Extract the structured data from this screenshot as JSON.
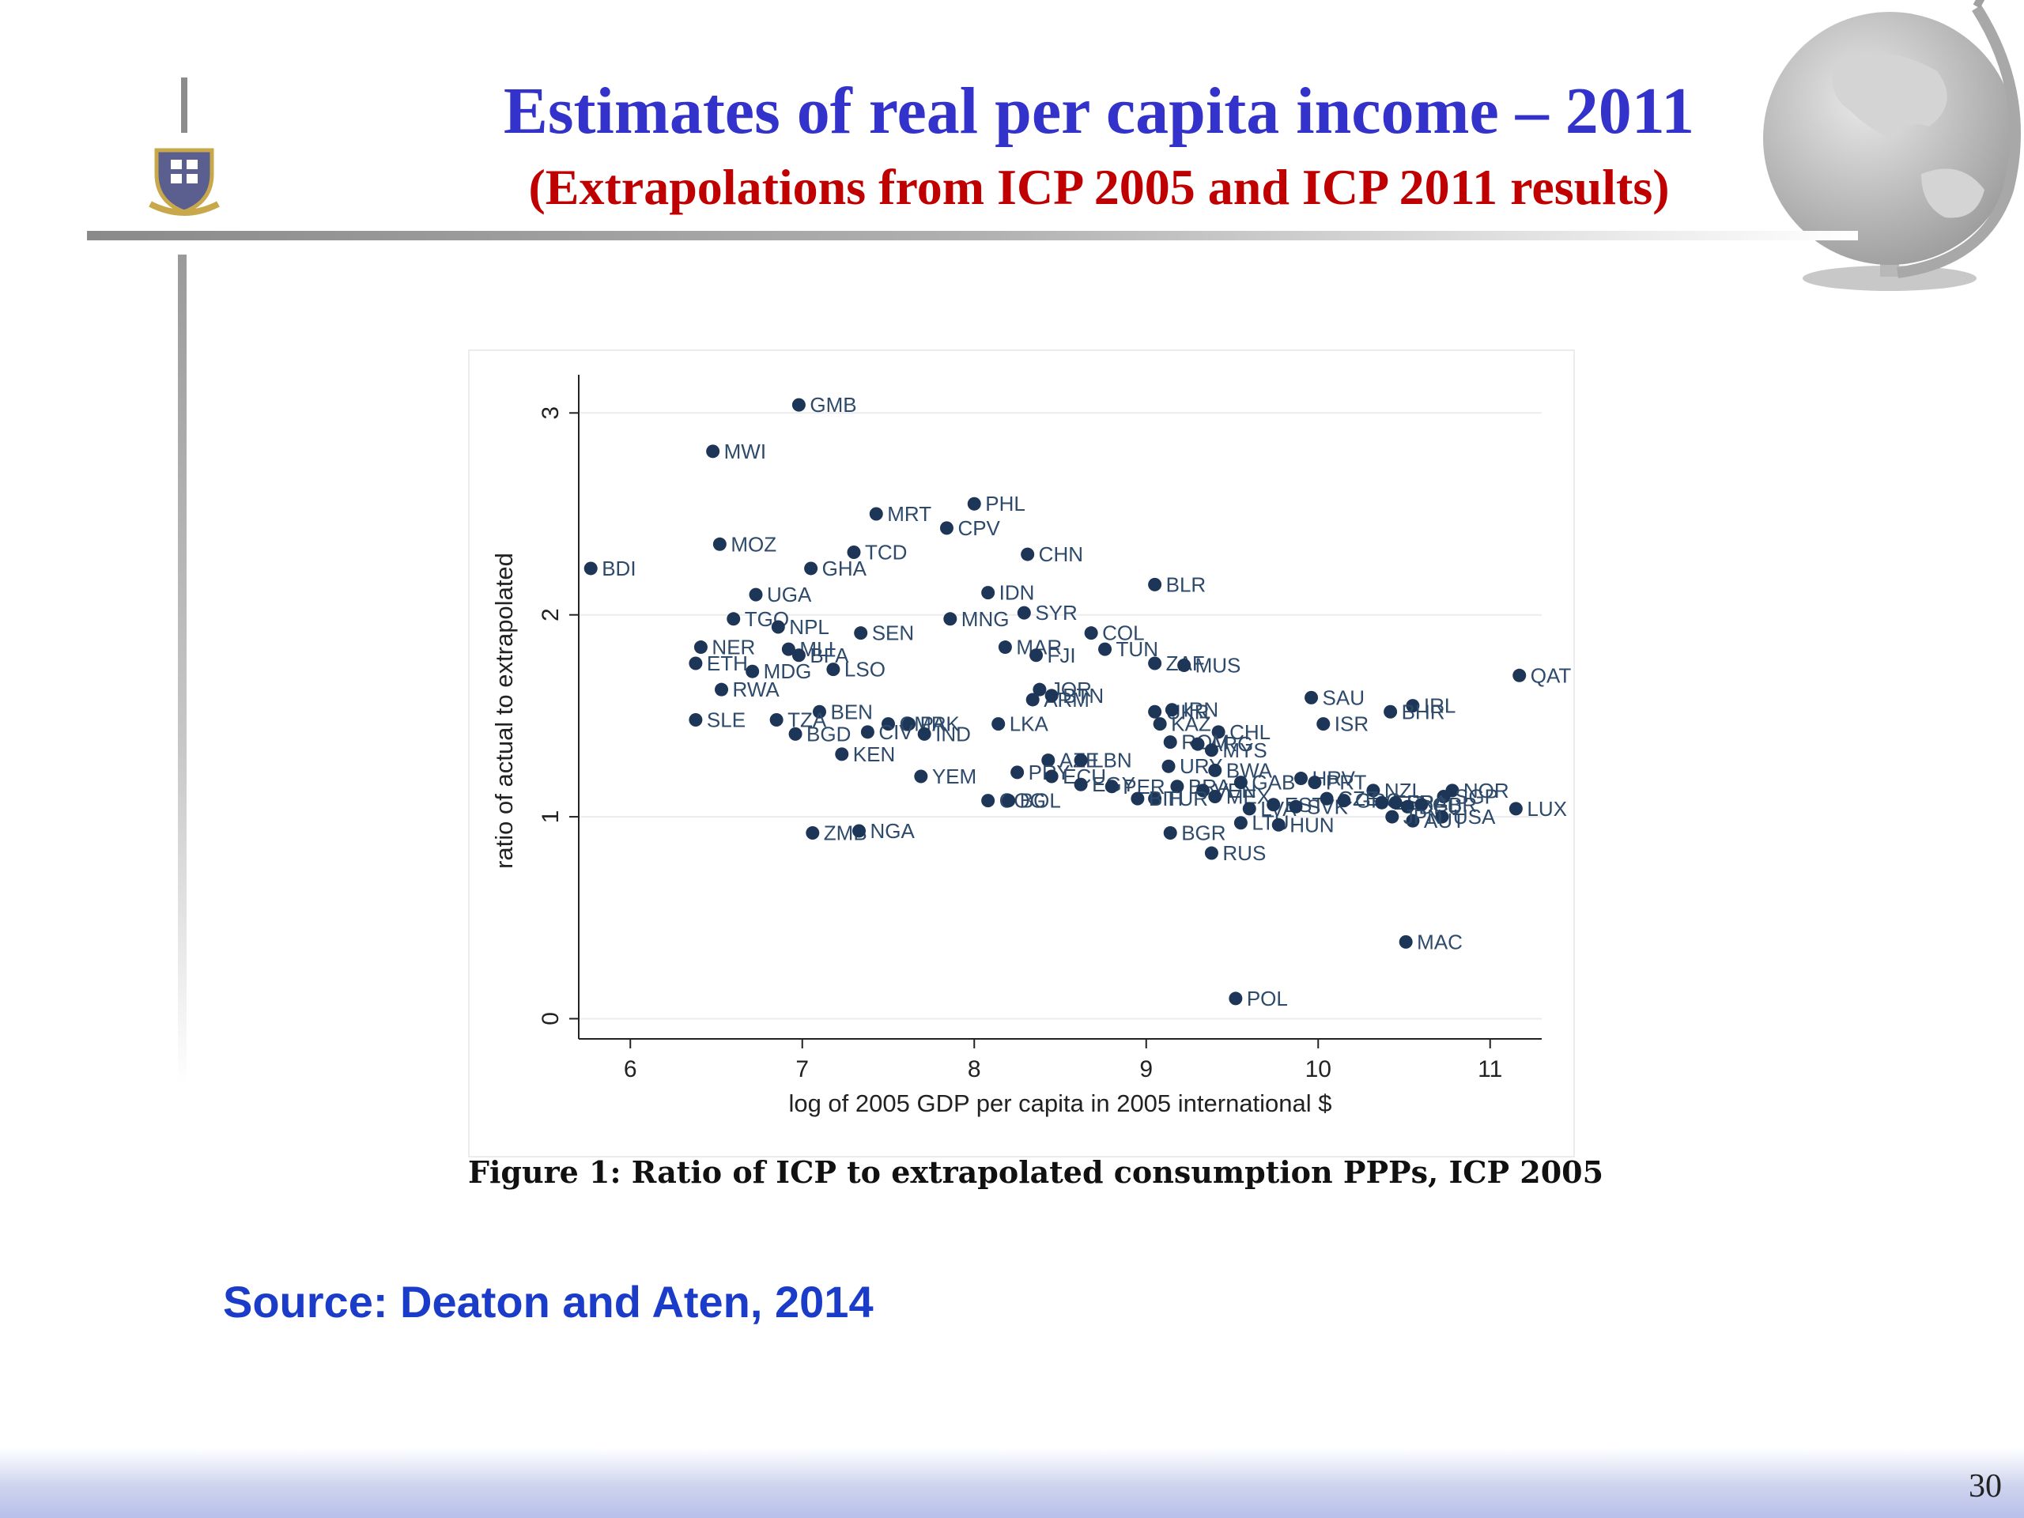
{
  "slide": {
    "title": "Estimates of real  per capita income – 2011",
    "subtitle": "(Extrapolations from ICP 2005 and ICP 2011 results)",
    "figure_caption": "Figure 1: Ratio of ICP to extrapolated consumption PPPs, ICP 2005",
    "source": "Source: Deaton and Aten, 2014",
    "page_number": "30",
    "icons": [
      "university-crest-icon",
      "globe-icon"
    ],
    "colors": {
      "title": "#3333cc",
      "subtitle": "#c00000",
      "source": "#1a3cc8",
      "marker": "#1d3557"
    }
  },
  "chart_data": {
    "type": "scatter",
    "title": "",
    "xlabel": "log of 2005 GDP per capita in 2005 international $",
    "ylabel": "ratio of actual to extrapolated",
    "xlim": [
      5.7,
      11.3
    ],
    "ylim": [
      -0.1,
      3.15
    ],
    "xticks": [
      "6",
      "7",
      "8",
      "9",
      "10",
      "11"
    ],
    "yticks": [
      "0",
      "1",
      "2",
      "3"
    ],
    "grid": true,
    "legend": "none",
    "points": [
      {
        "label": "GMB",
        "x": 6.98,
        "y": 3.04
      },
      {
        "label": "MWI",
        "x": 6.48,
        "y": 2.81
      },
      {
        "label": "PHL",
        "x": 8.0,
        "y": 2.55
      },
      {
        "label": "MRT",
        "x": 7.43,
        "y": 2.5
      },
      {
        "label": "CPV",
        "x": 7.84,
        "y": 2.43
      },
      {
        "label": "MOZ",
        "x": 6.52,
        "y": 2.35
      },
      {
        "label": "TCD",
        "x": 7.3,
        "y": 2.31
      },
      {
        "label": "CHN",
        "x": 8.31,
        "y": 2.3
      },
      {
        "label": "BDI",
        "x": 5.77,
        "y": 2.23
      },
      {
        "label": "GHA",
        "x": 7.05,
        "y": 2.23
      },
      {
        "label": "BLR",
        "x": 9.05,
        "y": 2.15
      },
      {
        "label": "UGA",
        "x": 6.73,
        "y": 2.1
      },
      {
        "label": "IDN",
        "x": 8.08,
        "y": 2.11
      },
      {
        "label": "SYR",
        "x": 8.29,
        "y": 2.01
      },
      {
        "label": "TGO",
        "x": 6.6,
        "y": 1.98
      },
      {
        "label": "MNG",
        "x": 7.86,
        "y": 1.98
      },
      {
        "label": "NPL",
        "x": 6.86,
        "y": 1.94
      },
      {
        "label": "SEN",
        "x": 7.34,
        "y": 1.91
      },
      {
        "label": "COL",
        "x": 8.68,
        "y": 1.91
      },
      {
        "label": "NER",
        "x": 6.41,
        "y": 1.84
      },
      {
        "label": "MLI",
        "x": 6.92,
        "y": 1.83
      },
      {
        "label": "BFA",
        "x": 6.98,
        "y": 1.8
      },
      {
        "label": "MAR",
        "x": 8.18,
        "y": 1.84
      },
      {
        "label": "TUN",
        "x": 8.76,
        "y": 1.83
      },
      {
        "label": "FJI",
        "x": 8.36,
        "y": 1.8
      },
      {
        "label": "ETH",
        "x": 6.38,
        "y": 1.76
      },
      {
        "label": "ZAF",
        "x": 9.05,
        "y": 1.76
      },
      {
        "label": "MUS",
        "x": 9.22,
        "y": 1.75
      },
      {
        "label": "MDG",
        "x": 6.71,
        "y": 1.72
      },
      {
        "label": "LSO",
        "x": 7.18,
        "y": 1.73
      },
      {
        "label": "QAT",
        "x": 11.17,
        "y": 1.7
      },
      {
        "label": "RWA",
        "x": 6.53,
        "y": 1.63
      },
      {
        "label": "JOR",
        "x": 8.38,
        "y": 1.63
      },
      {
        "label": "ARM",
        "x": 8.34,
        "y": 1.58
      },
      {
        "label": "BTN",
        "x": 8.45,
        "y": 1.6
      },
      {
        "label": "SAU",
        "x": 9.96,
        "y": 1.59
      },
      {
        "label": "IRL",
        "x": 10.55,
        "y": 1.55
      },
      {
        "label": "BHR",
        "x": 10.42,
        "y": 1.52
      },
      {
        "label": "BEN",
        "x": 7.1,
        "y": 1.52
      },
      {
        "label": "UKR",
        "x": 9.05,
        "y": 1.52
      },
      {
        "label": "IRN",
        "x": 9.15,
        "y": 1.53
      },
      {
        "label": "SLE",
        "x": 6.38,
        "y": 1.48
      },
      {
        "label": "TZA",
        "x": 6.85,
        "y": 1.48
      },
      {
        "label": "CMR",
        "x": 7.5,
        "y": 1.46
      },
      {
        "label": "PAK",
        "x": 7.62,
        "y": 1.46
      },
      {
        "label": "LKA",
        "x": 8.14,
        "y": 1.46
      },
      {
        "label": "KAZ",
        "x": 9.08,
        "y": 1.46
      },
      {
        "label": "ISR",
        "x": 10.03,
        "y": 1.46
      },
      {
        "label": "BGD",
        "x": 6.96,
        "y": 1.41
      },
      {
        "label": "CIV",
        "x": 7.38,
        "y": 1.42
      },
      {
        "label": "IND",
        "x": 7.71,
        "y": 1.41
      },
      {
        "label": "CHL",
        "x": 9.42,
        "y": 1.42
      },
      {
        "label": "ROM",
        "x": 9.14,
        "y": 1.37
      },
      {
        "label": "ARG",
        "x": 9.3,
        "y": 1.36
      },
      {
        "label": "MYS",
        "x": 9.38,
        "y": 1.33
      },
      {
        "label": "KEN",
        "x": 7.23,
        "y": 1.31
      },
      {
        "label": "AZE",
        "x": 8.43,
        "y": 1.28
      },
      {
        "label": "LBN",
        "x": 8.62,
        "y": 1.28
      },
      {
        "label": "URY",
        "x": 9.13,
        "y": 1.25
      },
      {
        "label": "BWA",
        "x": 9.4,
        "y": 1.23
      },
      {
        "label": "PRY",
        "x": 8.25,
        "y": 1.22
      },
      {
        "label": "ECU",
        "x": 8.45,
        "y": 1.2
      },
      {
        "label": "YEM",
        "x": 7.69,
        "y": 1.2
      },
      {
        "label": "EGY",
        "x": 8.62,
        "y": 1.16
      },
      {
        "label": "PER",
        "x": 8.8,
        "y": 1.15
      },
      {
        "label": "BRA",
        "x": 9.18,
        "y": 1.15
      },
      {
        "label": "VEN",
        "x": 9.33,
        "y": 1.13
      },
      {
        "label": "GAB",
        "x": 9.55,
        "y": 1.17
      },
      {
        "label": "HRV",
        "x": 9.9,
        "y": 1.19
      },
      {
        "label": "PRT",
        "x": 9.98,
        "y": 1.17
      },
      {
        "label": "NZL",
        "x": 10.32,
        "y": 1.13
      },
      {
        "label": "NOR",
        "x": 10.78,
        "y": 1.13
      },
      {
        "label": "SGP",
        "x": 10.73,
        "y": 1.1
      },
      {
        "label": "MEX",
        "x": 9.4,
        "y": 1.1
      },
      {
        "label": "TUR",
        "x": 9.05,
        "y": 1.09
      },
      {
        "label": "BIH",
        "x": 8.95,
        "y": 1.09
      },
      {
        "label": "COG",
        "x": 8.08,
        "y": 1.08
      },
      {
        "label": "BOL",
        "x": 8.2,
        "y": 1.08
      },
      {
        "label": "LVA",
        "x": 9.6,
        "y": 1.04
      },
      {
        "label": "EST",
        "x": 9.74,
        "y": 1.06
      },
      {
        "label": "SVK",
        "x": 9.87,
        "y": 1.05
      },
      {
        "label": "CZE",
        "x": 10.05,
        "y": 1.09
      },
      {
        "label": "GRC",
        "x": 10.15,
        "y": 1.08
      },
      {
        "label": "ESP",
        "x": 10.37,
        "y": 1.07
      },
      {
        "label": "FRA",
        "x": 10.45,
        "y": 1.07
      },
      {
        "label": "DEU",
        "x": 10.52,
        "y": 1.05
      },
      {
        "label": "GBR",
        "x": 10.6,
        "y": 1.06
      },
      {
        "label": "USA",
        "x": 10.72,
        "y": 1.0
      },
      {
        "label": "AUT",
        "x": 10.55,
        "y": 0.98
      },
      {
        "label": "JPN",
        "x": 10.43,
        "y": 1.0
      },
      {
        "label": "LUX",
        "x": 11.15,
        "y": 1.04
      },
      {
        "label": "ZMB",
        "x": 7.06,
        "y": 0.92
      },
      {
        "label": "NGA",
        "x": 7.33,
        "y": 0.93
      },
      {
        "label": "LTU",
        "x": 9.55,
        "y": 0.97
      },
      {
        "label": "HUN",
        "x": 9.77,
        "y": 0.96
      },
      {
        "label": "BGR",
        "x": 9.14,
        "y": 0.92
      },
      {
        "label": "RUS",
        "x": 9.38,
        "y": 0.82
      },
      {
        "label": "MAC",
        "x": 10.51,
        "y": 0.38
      },
      {
        "label": "POL",
        "x": 9.52,
        "y": 0.1
      }
    ]
  }
}
